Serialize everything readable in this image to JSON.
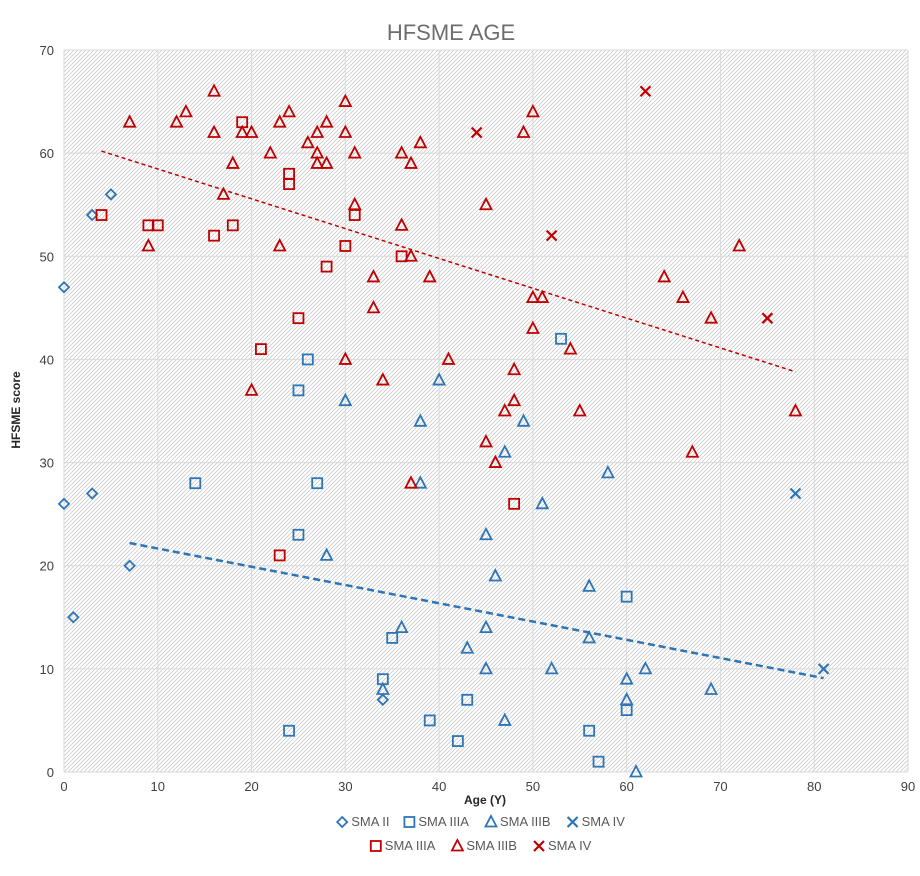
{
  "chart_data": {
    "type": "scatter",
    "title": "HFSME AGE",
    "xlabel": "Age (Y)",
    "ylabel": "HFSME score",
    "xlim": [
      0,
      90
    ],
    "ylim": [
      0,
      70
    ],
    "xticks": [
      0,
      10,
      20,
      30,
      40,
      50,
      60,
      70,
      80,
      90
    ],
    "yticks": [
      0,
      10,
      20,
      30,
      40,
      50,
      60,
      70
    ],
    "grid": true,
    "legend_position": "bottom",
    "series": [
      {
        "name": "SMA II",
        "color": "#2e75b6",
        "marker": "diamond-open",
        "points": [
          [
            0,
            47
          ],
          [
            0,
            26
          ],
          [
            1,
            15
          ],
          [
            3,
            54
          ],
          [
            3,
            27
          ],
          [
            5,
            56
          ],
          [
            7,
            20
          ],
          [
            34,
            7
          ]
        ]
      },
      {
        "name": "SMA IIIA",
        "color": "#2e75b6",
        "marker": "square-open",
        "points": [
          [
            14,
            28
          ],
          [
            24,
            4
          ],
          [
            25,
            37
          ],
          [
            25,
            23
          ],
          [
            26,
            40
          ],
          [
            27,
            28
          ],
          [
            34,
            9
          ],
          [
            35,
            13
          ],
          [
            39,
            5
          ],
          [
            42,
            3
          ],
          [
            43,
            7
          ],
          [
            53,
            42
          ],
          [
            56,
            4
          ],
          [
            57,
            1
          ],
          [
            60,
            17
          ],
          [
            60,
            6
          ]
        ]
      },
      {
        "name": "SMA IIIB",
        "color": "#2e75b6",
        "marker": "triangle-open",
        "points": [
          [
            28,
            21
          ],
          [
            30,
            36
          ],
          [
            34,
            8
          ],
          [
            36,
            14
          ],
          [
            38,
            34
          ],
          [
            38,
            28
          ],
          [
            40,
            38
          ],
          [
            43,
            12
          ],
          [
            45,
            23
          ],
          [
            45,
            14
          ],
          [
            45,
            10
          ],
          [
            46,
            19
          ],
          [
            47,
            31
          ],
          [
            47,
            5
          ],
          [
            49,
            34
          ],
          [
            51,
            26
          ],
          [
            52,
            10
          ],
          [
            56,
            18
          ],
          [
            56,
            13
          ],
          [
            58,
            29
          ],
          [
            60,
            9
          ],
          [
            60,
            7
          ],
          [
            61,
            0
          ],
          [
            62,
            10
          ],
          [
            69,
            8
          ]
        ]
      },
      {
        "name": "SMA IV",
        "color": "#2e75b6",
        "marker": "x",
        "points": [
          [
            78,
            27
          ],
          [
            81,
            10
          ]
        ]
      },
      {
        "name": "SMA IIIA",
        "color": "#c00000",
        "marker": "square-open",
        "points": [
          [
            4,
            54
          ],
          [
            9,
            53
          ],
          [
            10,
            53
          ],
          [
            16,
            52
          ],
          [
            18,
            53
          ],
          [
            19,
            63
          ],
          [
            21,
            41
          ],
          [
            23,
            21
          ],
          [
            24,
            58
          ],
          [
            24,
            57
          ],
          [
            25,
            44
          ],
          [
            28,
            49
          ],
          [
            30,
            51
          ],
          [
            31,
            54
          ],
          [
            36,
            50
          ],
          [
            48,
            26
          ]
        ]
      },
      {
        "name": "SMA IIIB",
        "color": "#c00000",
        "marker": "triangle-open",
        "points": [
          [
            7,
            63
          ],
          [
            9,
            51
          ],
          [
            12,
            63
          ],
          [
            13,
            64
          ],
          [
            16,
            66
          ],
          [
            16,
            62
          ],
          [
            17,
            56
          ],
          [
            18,
            59
          ],
          [
            19,
            62
          ],
          [
            20,
            62
          ],
          [
            20,
            37
          ],
          [
            22,
            60
          ],
          [
            23,
            63
          ],
          [
            23,
            51
          ],
          [
            24,
            64
          ],
          [
            26,
            61
          ],
          [
            27,
            62
          ],
          [
            27,
            60
          ],
          [
            27,
            59
          ],
          [
            28,
            63
          ],
          [
            28,
            59
          ],
          [
            30,
            65
          ],
          [
            30,
            62
          ],
          [
            30,
            40
          ],
          [
            31,
            60
          ],
          [
            31,
            55
          ],
          [
            33,
            48
          ],
          [
            33,
            45
          ],
          [
            34,
            38
          ],
          [
            36,
            60
          ],
          [
            36,
            53
          ],
          [
            37,
            59
          ],
          [
            37,
            50
          ],
          [
            37,
            28
          ],
          [
            38,
            61
          ],
          [
            39,
            48
          ],
          [
            41,
            40
          ],
          [
            45,
            55
          ],
          [
            45,
            32
          ],
          [
            46,
            30
          ],
          [
            47,
            35
          ],
          [
            48,
            39
          ],
          [
            48,
            36
          ],
          [
            49,
            62
          ],
          [
            50,
            64
          ],
          [
            50,
            46
          ],
          [
            50,
            43
          ],
          [
            51,
            46
          ],
          [
            54,
            41
          ],
          [
            55,
            35
          ],
          [
            64,
            48
          ],
          [
            66,
            46
          ],
          [
            67,
            31
          ],
          [
            69,
            44
          ],
          [
            72,
            51
          ],
          [
            78,
            35
          ]
        ]
      },
      {
        "name": "SMA IV",
        "color": "#c00000",
        "marker": "x",
        "points": [
          [
            44,
            62
          ],
          [
            52,
            52
          ],
          [
            62,
            66
          ],
          [
            75,
            44
          ]
        ]
      }
    ],
    "trendlines": [
      {
        "color": "#c00000",
        "from": [
          4,
          60.2
        ],
        "to": [
          78,
          38.8
        ]
      },
      {
        "color": "#2e75b6",
        "from": [
          7,
          22.2
        ],
        "to": [
          81,
          9.1
        ]
      }
    ]
  }
}
